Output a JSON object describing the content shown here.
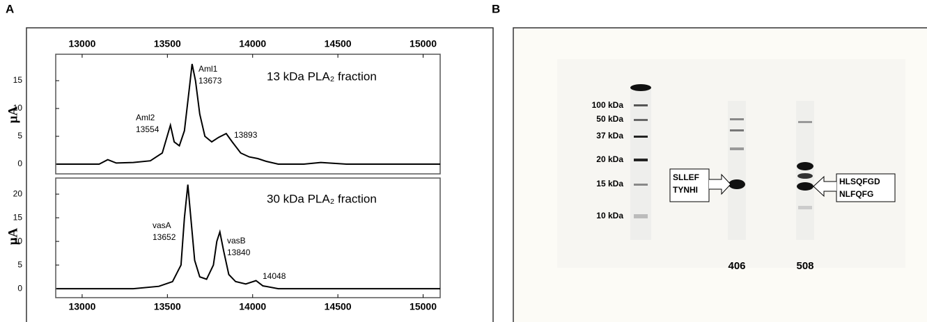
{
  "panel_labels": [
    "A",
    "B"
  ],
  "chart_data": [
    {
      "type": "line",
      "title": "13 kDa PLA₂ fraction",
      "ylabel": "μA",
      "color": "#000000",
      "x": [
        12850,
        13100,
        13150,
        13200,
        13300,
        13400,
        13470,
        13518,
        13540,
        13570,
        13600,
        13630,
        13645,
        13665,
        13690,
        13720,
        13760,
        13800,
        13845,
        13880,
        13930,
        13980,
        14030,
        14080,
        14150,
        14300,
        14400,
        14550,
        15100
      ],
      "values": [
        0,
        0,
        0.8,
        0.2,
        0.3,
        0.6,
        2,
        7,
        4,
        3.3,
        6,
        14,
        18,
        15,
        9,
        5,
        4,
        4.8,
        5.5,
        4,
        2,
        1.3,
        1,
        0.5,
        0,
        0,
        0.3,
        0,
        0
      ],
      "xlim": [
        12845,
        15100
      ],
      "ylim": [
        -1.75,
        19.75
      ],
      "xticks": [
        13000,
        13500,
        14000,
        14500,
        15000
      ],
      "yticks": [
        0,
        5,
        10,
        15
      ],
      "annotations": [
        [
          "Aml2",
          "13554"
        ],
        [
          "Aml1",
          "13673"
        ],
        [
          "13893"
        ]
      ]
    },
    {
      "type": "line",
      "title": "30 kDa PLA₂ fraction",
      "ylabel": "μA",
      "color": "#000000",
      "x": [
        12850,
        13300,
        13450,
        13530,
        13580,
        13600,
        13620,
        13640,
        13660,
        13690,
        13730,
        13770,
        13790,
        13808,
        13830,
        13860,
        13900,
        13960,
        14020,
        14060,
        14150,
        14500,
        15100
      ],
      "values": [
        0,
        0,
        0.5,
        1.5,
        5,
        15,
        22,
        14,
        6,
        2.5,
        2,
        5,
        10,
        12,
        8,
        3,
        1.5,
        1,
        1.7,
        0.6,
        0,
        0,
        0
      ],
      "xlim": [
        12845,
        15100
      ],
      "ylim": [
        -1.9,
        23.4
      ],
      "xticks": [
        13000,
        13500,
        14000,
        14500,
        15000
      ],
      "yticks": [
        0,
        5,
        10,
        15,
        20
      ],
      "annotations": [
        [
          "vasA",
          "13652"
        ],
        [
          "vasB",
          "13840"
        ],
        [
          "14048"
        ]
      ]
    }
  ],
  "gel": {
    "markers": [
      "100 kDa",
      "50 kDa",
      "37 kDa",
      "20 kDa",
      "15 kDa",
      "10 kDa"
    ],
    "lanes": [
      "406",
      "508"
    ],
    "callouts": [
      [
        "SLLEF",
        "TYNHI"
      ],
      [
        "HLSQFGD",
        "NLFQFG"
      ]
    ]
  }
}
